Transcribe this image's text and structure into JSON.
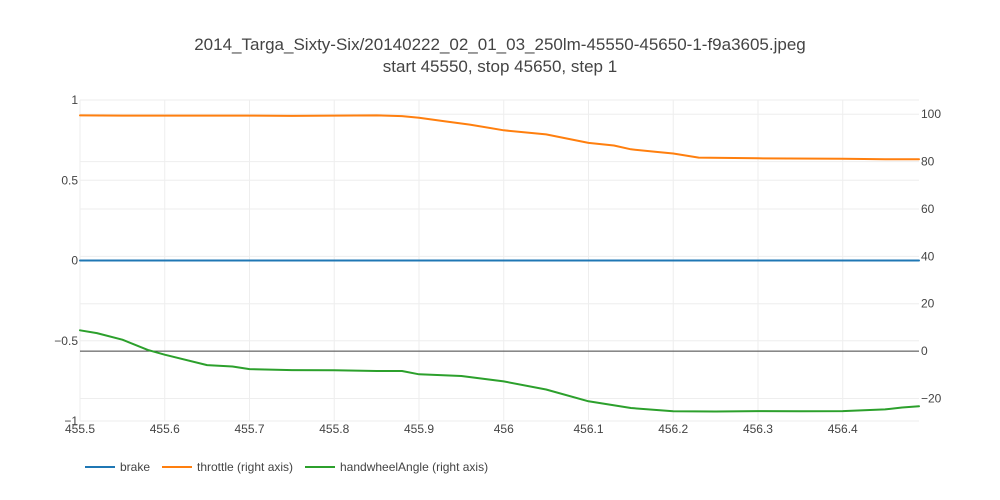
{
  "chart_data": {
    "type": "line",
    "title_line1": "2014_Targa_Sixty-Six/20140222_02_01_03_250lm-45550-45650-1-f9a3605.jpeg",
    "title_line2": "start 45550, stop 45650, step 1",
    "x_range": [
      455.5,
      456.49
    ],
    "x_ticks": [
      455.5,
      455.6,
      455.7,
      455.8,
      455.9,
      456,
      456.1,
      456.2,
      456.3,
      456.4
    ],
    "x_tick_labels": [
      "455.5",
      "455.6",
      "455.7",
      "455.8",
      "455.9",
      "456",
      "456.1",
      "456.2",
      "456.3",
      "456.4"
    ],
    "y_left_range": [
      -1,
      1
    ],
    "y_left_ticks": [
      1,
      0.5,
      0,
      -0.5,
      -1
    ],
    "y_left_tick_labels": [
      "1",
      "0.5",
      "0",
      "−0.5",
      "−1"
    ],
    "y_right_range": [
      -29.5,
      106
    ],
    "y_right_ticks": [
      100,
      80,
      60,
      40,
      20,
      0,
      -20
    ],
    "y_right_tick_labels": [
      "100",
      "80",
      "60",
      "40",
      "20",
      "0",
      "−20"
    ],
    "grid": true,
    "legend_position": "bottom-left",
    "series": [
      {
        "name": "brake",
        "axis": "left",
        "color": "#1f77b4",
        "x": [
          455.5,
          456.49
        ],
        "y": [
          0,
          0
        ]
      },
      {
        "name": "throttle (right axis)",
        "axis": "right",
        "color": "#ff7f0e",
        "x": [
          455.5,
          455.55,
          455.6,
          455.65,
          455.7,
          455.75,
          455.8,
          455.85,
          455.88,
          455.9,
          455.93,
          455.96,
          456.0,
          456.05,
          456.1,
          456.13,
          456.15,
          456.18,
          456.2,
          456.23,
          456.3,
          456.4,
          456.45,
          456.49
        ],
        "y": [
          99.5,
          99.4,
          99.4,
          99.4,
          99.4,
          99.3,
          99.4,
          99.5,
          99.2,
          98.5,
          97.0,
          95.6,
          93.2,
          91.5,
          87.9,
          86.8,
          85.2,
          84.1,
          83.4,
          81.7,
          81.4,
          81.2,
          81.0,
          81.0
        ]
      },
      {
        "name": "handwheelAngle (right axis)",
        "axis": "right",
        "color": "#2ca02c",
        "x": [
          455.5,
          455.52,
          455.55,
          455.58,
          455.6,
          455.65,
          455.68,
          455.7,
          455.75,
          455.8,
          455.85,
          455.88,
          455.9,
          455.95,
          456.0,
          456.05,
          456.1,
          456.15,
          456.2,
          456.25,
          456.3,
          456.35,
          456.4,
          456.45,
          456.47,
          456.49
        ],
        "y": [
          8.8,
          7.6,
          4.8,
          0.5,
          -1.5,
          -5.9,
          -6.5,
          -7.6,
          -8.0,
          -8.1,
          -8.4,
          -8.4,
          -9.8,
          -10.5,
          -12.8,
          -16.2,
          -21.2,
          -24.0,
          -25.4,
          -25.5,
          -25.3,
          -25.4,
          -25.3,
          -24.6,
          -23.8,
          -23.3
        ]
      }
    ]
  }
}
